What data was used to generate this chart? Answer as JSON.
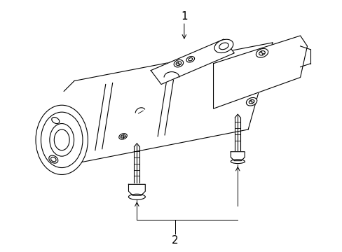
{
  "background_color": "#ffffff",
  "line_color": "#000000",
  "label_1": "1",
  "label_2": "2",
  "label_fontsize": 11,
  "fig_width": 4.89,
  "fig_height": 3.6,
  "dpi": 100
}
